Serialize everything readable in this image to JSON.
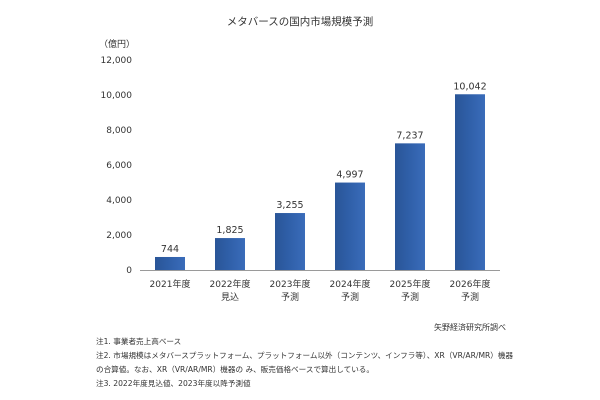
{
  "chart_data": {
    "type": "bar",
    "title": "メタバースの国内市場規模予測",
    "unit_label": "（億円）",
    "categories": [
      "2021年度",
      "2022年度",
      "2023年度",
      "2024年度",
      "2025年度",
      "2026年度"
    ],
    "category_sublabels": [
      "",
      "見込",
      "予測",
      "予測",
      "予測",
      "予測"
    ],
    "values": [
      744,
      1825,
      3255,
      4997,
      7237,
      10042
    ],
    "value_labels": [
      "744",
      "1,825",
      "3,255",
      "4,997",
      "7,237",
      "10,042"
    ],
    "ylim": [
      0,
      12000
    ],
    "yticks": [
      0,
      2000,
      4000,
      6000,
      8000,
      10000,
      12000
    ],
    "ytick_labels": [
      "0",
      "2,000",
      "4,000",
      "6,000",
      "8,000",
      "10,000",
      "12,000"
    ],
    "xlabel": "",
    "ylabel": "",
    "grid": false,
    "bar_color": "#2f5fa8"
  },
  "source": "矢野経済研究所調べ",
  "notes": [
    "注1. 事業者売上高ベース",
    "注2. 市場規模はメタバースプラットフォーム、プラットフォーム以外（コンテンツ、インフラ等）、XR（VR/AR/MR）機器",
    "の合算値。なお、XR（VR/AR/MR）機器の み、販売価格ベースで算出している。",
    "注3. 2022年度見込値、2023年度以降予測値"
  ]
}
